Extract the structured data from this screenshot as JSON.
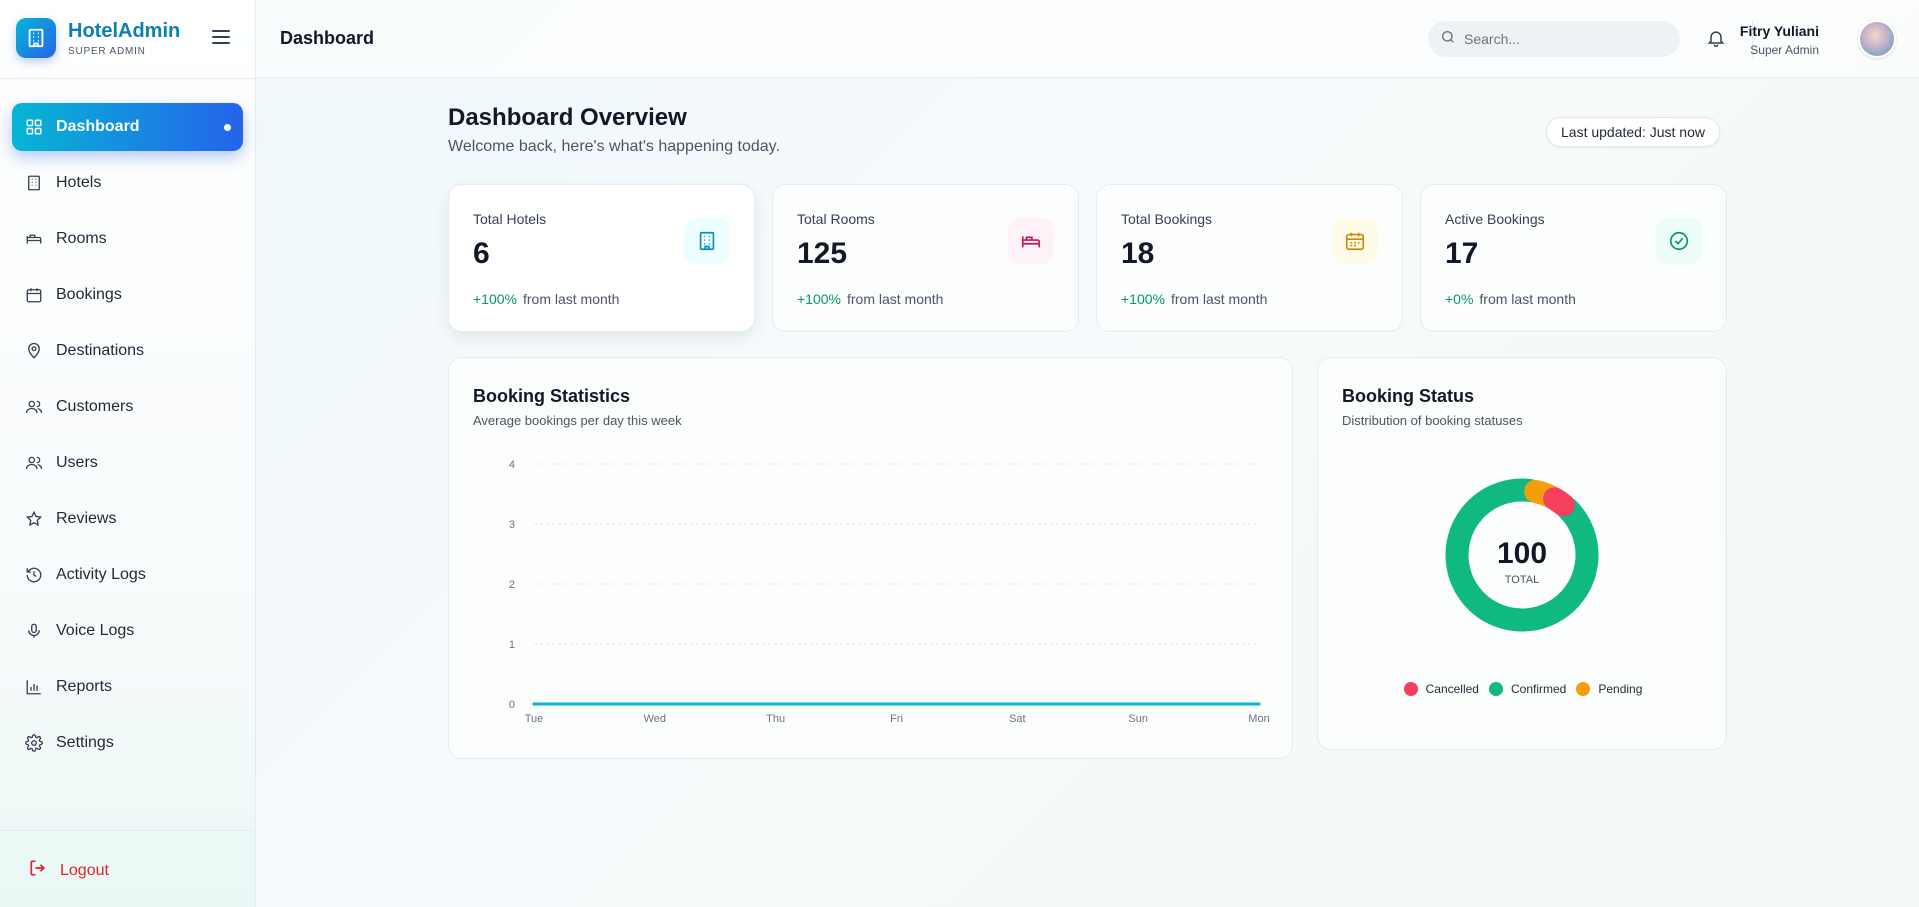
{
  "brand": {
    "title": "HotelAdmin",
    "subtitle": "SUPER ADMIN"
  },
  "nav": [
    {
      "label": "Dashboard",
      "icon": "dashboard-icon",
      "active": true
    },
    {
      "label": "Hotels",
      "icon": "building-icon"
    },
    {
      "label": "Rooms",
      "icon": "bed-icon"
    },
    {
      "label": "Bookings",
      "icon": "calendar-icon"
    },
    {
      "label": "Destinations",
      "icon": "map-pin-icon"
    },
    {
      "label": "Customers",
      "icon": "users-icon"
    },
    {
      "label": "Users",
      "icon": "users-icon"
    },
    {
      "label": "Reviews",
      "icon": "star-icon"
    },
    {
      "label": "Activity Logs",
      "icon": "history-icon"
    },
    {
      "label": "Voice Logs",
      "icon": "microphone-icon"
    },
    {
      "label": "Reports",
      "icon": "bar-chart-icon"
    },
    {
      "label": "Settings",
      "icon": "gear-icon"
    }
  ],
  "logout": {
    "label": "Logout",
    "color": "#dc2626"
  },
  "header": {
    "title": "Dashboard",
    "search_placeholder": "Search...",
    "user_name": "Fitry Yuliani",
    "user_role": "Super Admin"
  },
  "overview": {
    "title": "Dashboard Overview",
    "subtitle": "Welcome back, here's what's happening today.",
    "updated": "Last updated: Just now"
  },
  "stats": [
    {
      "label": "Total Hotels",
      "value": "6",
      "pct": "+100%",
      "note": "from last month",
      "icon": "building-icon",
      "color": "#0891b2",
      "bg": "#ecfeff"
    },
    {
      "label": "Total Rooms",
      "value": "125",
      "pct": "+100%",
      "note": "from last month",
      "icon": "bed-icon",
      "color": "#be185d",
      "bg": "#fdf2f8"
    },
    {
      "label": "Total Bookings",
      "value": "18",
      "pct": "+100%",
      "note": "from last month",
      "icon": "calendar-icon",
      "color": "#ca8a04",
      "bg": "#fefce8"
    },
    {
      "label": "Active Bookings",
      "value": "17",
      "pct": "+0%",
      "note": "from last month",
      "icon": "check-circle-icon",
      "color": "#059669",
      "bg": "#ecfdf5"
    }
  ],
  "booking_statistics": {
    "title": "Booking Statistics",
    "subtitle": "Average bookings per day this week"
  },
  "booking_status": {
    "title": "Booking Status",
    "subtitle": "Distribution of booking statuses",
    "total": "100",
    "total_label": "TOTAL"
  },
  "chart_data": [
    {
      "type": "line",
      "categories": [
        "Tue",
        "Wed",
        "Thu",
        "Fri",
        "Sat",
        "Sun",
        "Mon"
      ],
      "series": [
        {
          "values": [
            0,
            0,
            0,
            0,
            0,
            0,
            0
          ],
          "color": "#06b6d4"
        }
      ],
      "y_ticks": [
        "0",
        "1",
        "2",
        "3",
        "4"
      ],
      "ylim": [
        0,
        4
      ],
      "grid": true
    },
    {
      "type": "pie",
      "style": "donut",
      "labels": [
        "Cancelled",
        "Confirmed",
        "Pending"
      ],
      "values": [
        4,
        91,
        5
      ],
      "colors": [
        "#f43f5e",
        "#10b981",
        "#f59e0b"
      ],
      "legend": "bottom"
    }
  ]
}
